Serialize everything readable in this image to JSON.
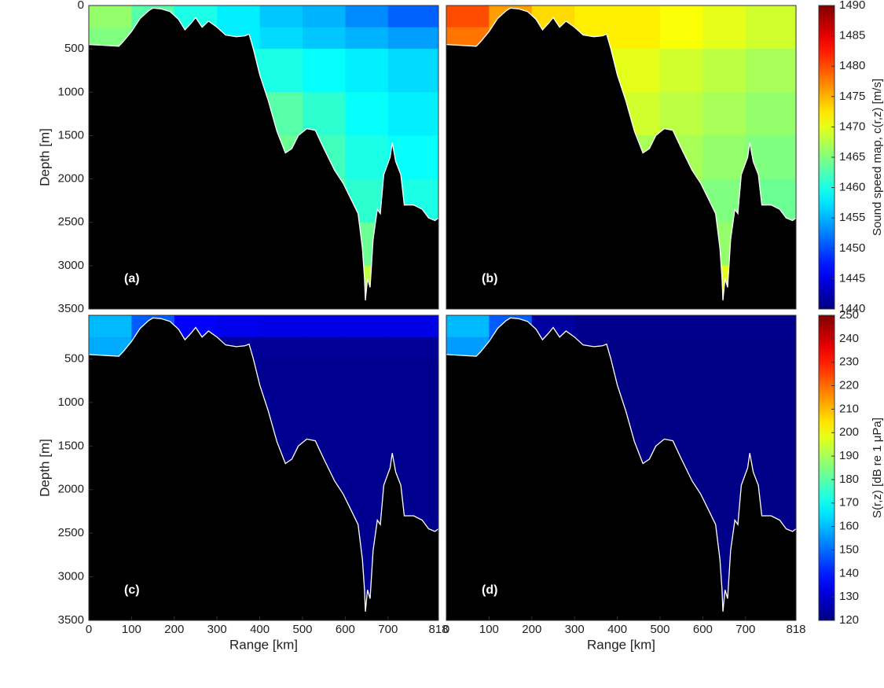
{
  "chart_data": [
    {
      "type": "heatmap",
      "label": "(a)",
      "ylabel": "Depth [m]",
      "xlim": [
        0,
        818
      ],
      "ylim": [
        0,
        3500
      ],
      "y_inverted": true,
      "yticks": [
        0,
        500,
        1000,
        1500,
        2000,
        2500,
        3000,
        3500
      ],
      "colormap": "jet",
      "clim": [
        1440,
        1490
      ],
      "xbins": [
        0,
        100,
        200,
        300,
        400,
        500,
        600,
        700,
        818
      ],
      "ybins": [
        0,
        250,
        500,
        1000,
        1500,
        2000,
        2500,
        3000,
        3500
      ],
      "z": [
        [
          1466,
          1463,
          1460,
          1458,
          1456,
          1455,
          1453,
          1451
        ],
        [
          1465,
          1462,
          1460,
          1458,
          1457,
          1456,
          1455,
          1454
        ],
        [
          1464,
          1462,
          1461,
          1460,
          1460,
          1459,
          1458,
          1457
        ],
        [
          1464,
          1463,
          1463,
          1463,
          1463,
          1461,
          1459,
          1458
        ],
        [
          1465,
          1465,
          1465,
          1465,
          1464,
          1462,
          1460,
          1459
        ],
        [
          1465,
          1465,
          1465,
          1465,
          1465,
          1463,
          1461,
          1460
        ],
        [
          1466,
          1466,
          1466,
          1466,
          1466,
          1465,
          1464,
          1463
        ],
        [
          1468,
          1468,
          1468,
          1468,
          1468,
          1468,
          1468,
          1468
        ]
      ],
      "bathymetry": {
        "color": "#ffffff",
        "x": [
          0,
          70,
          80,
          100,
          120,
          140,
          150,
          170,
          190,
          210,
          225,
          240,
          250,
          265,
          280,
          300,
          320,
          345,
          365,
          375,
          385,
          400,
          420,
          440,
          460,
          475,
          490,
          510,
          530,
          550,
          575,
          595,
          615,
          630,
          640,
          645,
          647,
          652,
          658,
          665,
          675,
          682,
          690,
          705,
          710,
          718,
          730,
          738,
          760,
          780,
          795,
          810,
          818
        ],
        "y": [
          450,
          470,
          420,
          300,
          150,
          60,
          30,
          40,
          70,
          160,
          280,
          200,
          140,
          250,
          180,
          250,
          340,
          360,
          350,
          330,
          500,
          800,
          1100,
          1450,
          1700,
          1650,
          1500,
          1420,
          1440,
          1650,
          1900,
          2050,
          2250,
          2400,
          2800,
          3150,
          3400,
          3150,
          3250,
          2700,
          2350,
          2400,
          1950,
          1750,
          1580,
          1800,
          1950,
          2300,
          2300,
          2350,
          2450,
          2480,
          2450
        ]
      }
    },
    {
      "type": "heatmap",
      "label": "(b)",
      "xlim": [
        0,
        818
      ],
      "ylim": [
        0,
        3500
      ],
      "y_inverted": true,
      "colormap": "jet",
      "clim": [
        1440,
        1490
      ],
      "xbins": [
        0,
        100,
        200,
        300,
        400,
        500,
        600,
        700,
        818
      ],
      "ybins": [
        0,
        250,
        500,
        1000,
        1500,
        2000,
        2500,
        3000,
        3500
      ],
      "z": [
        [
          1480,
          1476,
          1473,
          1472,
          1472,
          1471,
          1470,
          1469
        ],
        [
          1478,
          1475,
          1473,
          1472,
          1472,
          1471,
          1470,
          1469
        ],
        [
          1472,
          1471,
          1470,
          1470,
          1470,
          1469,
          1468,
          1467
        ],
        [
          1469,
          1469,
          1469,
          1469,
          1469,
          1468,
          1467,
          1466
        ],
        [
          1468,
          1468,
          1468,
          1468,
          1467,
          1467,
          1466,
          1465
        ],
        [
          1467,
          1467,
          1467,
          1467,
          1467,
          1466,
          1465,
          1464
        ],
        [
          1467,
          1467,
          1467,
          1467,
          1467,
          1466,
          1466,
          1465
        ],
        [
          1470,
          1470,
          1470,
          1470,
          1470,
          1470,
          1470,
          1470
        ]
      ],
      "bathymetry": {
        "color": "#ffffff",
        "x": [
          0,
          70,
          80,
          100,
          120,
          140,
          150,
          170,
          190,
          210,
          225,
          240,
          250,
          265,
          280,
          300,
          320,
          345,
          365,
          375,
          385,
          400,
          420,
          440,
          460,
          475,
          490,
          510,
          530,
          550,
          575,
          595,
          615,
          630,
          640,
          645,
          647,
          652,
          658,
          665,
          675,
          682,
          690,
          705,
          710,
          718,
          730,
          738,
          760,
          780,
          795,
          810,
          818
        ],
        "y": [
          450,
          470,
          420,
          300,
          150,
          60,
          30,
          40,
          70,
          160,
          280,
          200,
          140,
          250,
          180,
          250,
          340,
          360,
          350,
          330,
          500,
          800,
          1100,
          1450,
          1700,
          1650,
          1500,
          1420,
          1440,
          1650,
          1900,
          2050,
          2250,
          2400,
          2800,
          3150,
          3400,
          3150,
          3250,
          2700,
          2350,
          2400,
          1950,
          1750,
          1580,
          1800,
          1950,
          2300,
          2300,
          2350,
          2450,
          2480,
          2450
        ]
      }
    },
    {
      "type": "heatmap",
      "label": "(c)",
      "xlabel": "Range [km]",
      "ylabel": "Depth [m]",
      "xlim": [
        0,
        818
      ],
      "ylim": [
        0,
        3500
      ],
      "y_inverted": true,
      "xticks": [
        0,
        100,
        200,
        300,
        400,
        500,
        600,
        700,
        818
      ],
      "yticks": [
        500,
        1000,
        1500,
        2000,
        2500,
        3000,
        3500
      ],
      "colormap": "jet",
      "clim": [
        120,
        250
      ],
      "xbins": [
        0,
        100,
        200,
        300,
        400,
        500,
        600,
        700,
        818
      ],
      "ybins": [
        0,
        250,
        500,
        1000,
        1500,
        2000,
        2500,
        3000,
        3500
      ],
      "z": [
        [
          160,
          148,
          136,
          134,
          133,
          133,
          133,
          133
        ],
        [
          158,
          145,
          124,
          123,
          123,
          123,
          123,
          123
        ],
        [
          122,
          122,
          122,
          122,
          122,
          122,
          122,
          122
        ],
        [
          122,
          122,
          122,
          122,
          122,
          122,
          122,
          122
        ],
        [
          122,
          122,
          122,
          122,
          122,
          122,
          122,
          122
        ],
        [
          122,
          122,
          122,
          122,
          122,
          122,
          122,
          122
        ],
        [
          122,
          122,
          122,
          122,
          122,
          122,
          122,
          122
        ],
        [
          122,
          122,
          122,
          122,
          122,
          122,
          122,
          122
        ]
      ],
      "bathymetry": {
        "color": "#ffffff",
        "x": [
          0,
          70,
          80,
          100,
          120,
          140,
          150,
          170,
          190,
          210,
          225,
          240,
          250,
          265,
          280,
          300,
          320,
          345,
          365,
          375,
          385,
          400,
          420,
          440,
          460,
          475,
          490,
          510,
          530,
          550,
          575,
          595,
          615,
          630,
          640,
          645,
          647,
          652,
          658,
          665,
          675,
          682,
          690,
          705,
          710,
          718,
          730,
          738,
          760,
          780,
          795,
          810,
          818
        ],
        "y": [
          450,
          470,
          420,
          300,
          150,
          60,
          30,
          40,
          70,
          160,
          280,
          200,
          140,
          250,
          180,
          250,
          340,
          360,
          350,
          330,
          500,
          800,
          1100,
          1450,
          1700,
          1650,
          1500,
          1420,
          1440,
          1650,
          1900,
          2050,
          2250,
          2400,
          2800,
          3150,
          3400,
          3150,
          3250,
          2700,
          2350,
          2400,
          1950,
          1750,
          1580,
          1800,
          1950,
          2300,
          2300,
          2350,
          2450,
          2480,
          2450
        ]
      }
    },
    {
      "type": "heatmap",
      "label": "(d)",
      "xlabel": "Range [km]",
      "xlim": [
        0,
        818
      ],
      "ylim": [
        0,
        3500
      ],
      "y_inverted": true,
      "xticks": [
        0,
        100,
        200,
        300,
        400,
        500,
        600,
        700,
        818
      ],
      "colormap": "jet",
      "clim": [
        120,
        250
      ],
      "xbins": [
        0,
        100,
        200,
        300,
        400,
        500,
        600,
        700,
        818
      ],
      "ybins": [
        0,
        250,
        500,
        1000,
        1500,
        2000,
        2500,
        3000,
        3500
      ],
      "z": [
        [
          160,
          148,
          124,
          122,
          122,
          122,
          122,
          122
        ],
        [
          156,
          143,
          122,
          121,
          121,
          121,
          121,
          121
        ],
        [
          121,
          121,
          121,
          121,
          121,
          121,
          121,
          121
        ],
        [
          121,
          121,
          121,
          121,
          121,
          121,
          121,
          121
        ],
        [
          121,
          121,
          121,
          121,
          121,
          121,
          121,
          121
        ],
        [
          121,
          121,
          121,
          121,
          121,
          121,
          121,
          121
        ],
        [
          121,
          121,
          121,
          121,
          121,
          121,
          121,
          121
        ],
        [
          121,
          121,
          121,
          121,
          121,
          121,
          121,
          121
        ]
      ],
      "bathymetry": {
        "color": "#ffffff",
        "x": [
          0,
          70,
          80,
          100,
          120,
          140,
          150,
          170,
          190,
          210,
          225,
          240,
          250,
          265,
          280,
          300,
          320,
          345,
          365,
          375,
          385,
          400,
          420,
          440,
          460,
          475,
          490,
          510,
          530,
          550,
          575,
          595,
          615,
          630,
          640,
          645,
          647,
          652,
          658,
          665,
          675,
          682,
          690,
          705,
          710,
          718,
          730,
          738,
          760,
          780,
          795,
          810,
          818
        ],
        "y": [
          450,
          470,
          420,
          300,
          150,
          60,
          30,
          40,
          70,
          160,
          280,
          200,
          140,
          250,
          180,
          250,
          340,
          360,
          350,
          330,
          500,
          800,
          1100,
          1450,
          1700,
          1650,
          1500,
          1420,
          1440,
          1650,
          1900,
          2050,
          2250,
          2400,
          2800,
          3150,
          3400,
          3150,
          3250,
          2700,
          2350,
          2400,
          1950,
          1750,
          1580,
          1800,
          1950,
          2300,
          2300,
          2350,
          2450,
          2480,
          2450
        ]
      }
    },
    {
      "type": "colorbar",
      "colormap": "jet",
      "label": "Sound speed map, c(r,z) [m/s]",
      "ylim": [
        1440,
        1490
      ],
      "yticks": [
        1440,
        1445,
        1450,
        1455,
        1460,
        1465,
        1470,
        1475,
        1480,
        1485,
        1490
      ]
    },
    {
      "type": "colorbar",
      "colormap": "jet",
      "label": "S(r,z) [dB re 1 μPa]",
      "ylim": [
        120,
        250
      ],
      "yticks": [
        120,
        130,
        140,
        150,
        160,
        170,
        180,
        190,
        200,
        210,
        220,
        230,
        240,
        250
      ]
    }
  ]
}
